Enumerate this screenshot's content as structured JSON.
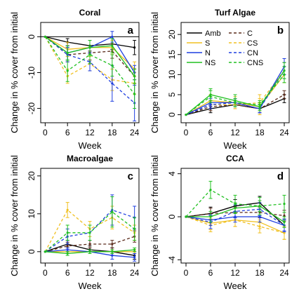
{
  "colors": {
    "Amb": "#000000",
    "S": "#f0c020",
    "N": "#1f3fe0",
    "NS": "#20c020"
  },
  "legend": {
    "entries": [
      {
        "label": "Amb",
        "color": "#000000",
        "dashed": false
      },
      {
        "label": "C",
        "color": "#5a2a1a",
        "dashed": true
      },
      {
        "label": "S",
        "color": "#f0c020",
        "dashed": false
      },
      {
        "label": "CS",
        "color": "#f0c020",
        "dashed": true
      },
      {
        "label": "N",
        "color": "#1f3fe0",
        "dashed": false
      },
      {
        "label": "CN",
        "color": "#1f3fe0",
        "dashed": true
      },
      {
        "label": "NS",
        "color": "#20c020",
        "dashed": false
      },
      {
        "label": "CNS",
        "color": "#20c020",
        "dashed": true
      }
    ]
  },
  "chart_data": [
    {
      "type": "line",
      "title": "Coral",
      "letter": "a",
      "xlabel": "Week",
      "ylabel": "Change in % cover from initial",
      "x": [
        0,
        6,
        12,
        18,
        24
      ],
      "xticks": [
        "0",
        "6",
        "12",
        "18",
        "24"
      ],
      "ylim": [
        -24,
        4
      ],
      "yticks": [
        0,
        -10,
        -20
      ],
      "yticklabels": [
        "0",
        "-10",
        "-20"
      ],
      "hline": 0,
      "series": [
        {
          "name": "Amb",
          "color": "#000000",
          "dashed": false,
          "values": [
            0,
            -1.5,
            -2.5,
            -2,
            -3
          ],
          "err": [
            0,
            1,
            1.5,
            1.5,
            2
          ]
        },
        {
          "name": "C",
          "color": "#5a2a1a",
          "dashed": true,
          "values": [
            0,
            -5,
            -4.5,
            -4,
            -11
          ],
          "err": [
            0,
            2,
            2,
            2,
            2
          ]
        },
        {
          "name": "S",
          "color": "#f0c020",
          "dashed": false,
          "values": [
            0,
            -3.5,
            -3,
            -3,
            -9
          ],
          "err": [
            0,
            2,
            2,
            2,
            2
          ]
        },
        {
          "name": "CS",
          "color": "#f0c020",
          "dashed": true,
          "values": [
            0,
            -11,
            -7.5,
            -12,
            -13
          ],
          "err": [
            0,
            2,
            2,
            3,
            3
          ]
        },
        {
          "name": "N",
          "color": "#1f3fe0",
          "dashed": false,
          "values": [
            0,
            -4.5,
            -3,
            0,
            -10
          ],
          "err": [
            0,
            2,
            2,
            1.5,
            2
          ]
        },
        {
          "name": "CN",
          "color": "#1f3fe0",
          "dashed": true,
          "values": [
            0,
            -5,
            -7,
            -13,
            -18.5
          ],
          "err": [
            0,
            2,
            2.5,
            5,
            5
          ]
        },
        {
          "name": "NS",
          "color": "#20c020",
          "dashed": false,
          "values": [
            0,
            -4.5,
            -3,
            -2.5,
            -11
          ],
          "err": [
            0,
            2,
            2,
            2,
            2
          ]
        },
        {
          "name": "CNS",
          "color": "#20c020",
          "dashed": true,
          "values": [
            0,
            -9.5,
            -5,
            -8,
            -16
          ],
          "err": [
            0,
            3,
            2.5,
            3,
            4
          ]
        }
      ]
    },
    {
      "type": "line",
      "title": "Turf Algae",
      "letter": "b",
      "xlabel": "Week",
      "ylabel": "Change in % cover from initial",
      "x": [
        0,
        6,
        12,
        18,
        24
      ],
      "xticks": [
        "0",
        "6",
        "12",
        "18",
        "24"
      ],
      "ylim": [
        -2,
        23
      ],
      "yticks": [
        0,
        5,
        10,
        15,
        20
      ],
      "yticklabels": [
        "0",
        "5",
        "10",
        "15",
        "20"
      ],
      "hline": null,
      "series": [
        {
          "name": "Amb",
          "color": "#000000",
          "dashed": false,
          "values": [
            0,
            1.5,
            2.5,
            1.5,
            4
          ],
          "err": [
            0,
            1,
            1,
            1,
            1
          ]
        },
        {
          "name": "C",
          "color": "#5a2a1a",
          "dashed": true,
          "values": [
            0,
            2,
            2.5,
            1.5,
            5
          ],
          "err": [
            0,
            1,
            1,
            1,
            1
          ]
        },
        {
          "name": "S",
          "color": "#f0c020",
          "dashed": false,
          "values": [
            0,
            3.5,
            3,
            2,
            10
          ],
          "err": [
            0,
            1.5,
            1.5,
            2,
            2
          ]
        },
        {
          "name": "CS",
          "color": "#f0c020",
          "dashed": true,
          "values": [
            0,
            2.5,
            2.5,
            3,
            11
          ],
          "err": [
            0,
            1,
            1,
            2,
            2
          ]
        },
        {
          "name": "N",
          "color": "#1f3fe0",
          "dashed": false,
          "values": [
            0,
            3,
            3,
            1.5,
            12
          ],
          "err": [
            0,
            1,
            1,
            1,
            2
          ]
        },
        {
          "name": "CN",
          "color": "#1f3fe0",
          "dashed": true,
          "values": [
            0,
            2.5,
            3,
            1.5,
            11
          ],
          "err": [
            0,
            1,
            1,
            1,
            2
          ]
        },
        {
          "name": "NS",
          "color": "#20c020",
          "dashed": false,
          "values": [
            0,
            5,
            3.5,
            2,
            11
          ],
          "err": [
            0,
            1.5,
            1.5,
            1,
            2
          ]
        },
        {
          "name": "CNS",
          "color": "#20c020",
          "dashed": true,
          "values": [
            0,
            4.5,
            3,
            2.5,
            10
          ],
          "err": [
            0,
            1.5,
            1,
            1,
            2
          ]
        }
      ]
    },
    {
      "type": "line",
      "title": "Macroalgae",
      "letter": "c",
      "xlabel": "Week",
      "ylabel": "Change in % cover from initial",
      "x": [
        0,
        6,
        12,
        18,
        24
      ],
      "xticks": [
        "0",
        "6",
        "12",
        "18",
        "24"
      ],
      "ylim": [
        -3,
        22
      ],
      "yticks": [
        0,
        10,
        20
      ],
      "yticklabels": [
        "0",
        "10",
        "20"
      ],
      "hline": null,
      "series": [
        {
          "name": "Amb",
          "color": "#000000",
          "dashed": false,
          "values": [
            0,
            2,
            0.5,
            0,
            -1
          ],
          "err": [
            0,
            1,
            1,
            1,
            1
          ]
        },
        {
          "name": "C",
          "color": "#5a2a1a",
          "dashed": true,
          "values": [
            0,
            1.5,
            2,
            2,
            4
          ],
          "err": [
            0,
            1,
            1,
            1,
            1.5
          ]
        },
        {
          "name": "S",
          "color": "#f0c020",
          "dashed": false,
          "values": [
            0,
            0,
            0,
            0,
            0
          ],
          "err": [
            0,
            0.5,
            0.5,
            0.5,
            0.5
          ]
        },
        {
          "name": "CS",
          "color": "#f0c020",
          "dashed": true,
          "values": [
            0,
            11,
            6,
            9,
            5
          ],
          "err": [
            0,
            2,
            2,
            3,
            2
          ]
        },
        {
          "name": "N",
          "color": "#1f3fe0",
          "dashed": false,
          "values": [
            0,
            0.5,
            0,
            -1,
            -1.5
          ],
          "err": [
            0,
            0.5,
            0.5,
            1,
            1
          ]
        },
        {
          "name": "CN",
          "color": "#1f3fe0",
          "dashed": true,
          "values": [
            0,
            4,
            5,
            11,
            9
          ],
          "err": [
            0,
            2,
            2,
            4,
            3
          ]
        },
        {
          "name": "NS",
          "color": "#20c020",
          "dashed": false,
          "values": [
            0,
            -0.5,
            0,
            0,
            0.5
          ],
          "err": [
            0,
            0.5,
            0.5,
            0.5,
            0.5
          ]
        },
        {
          "name": "CNS",
          "color": "#20c020",
          "dashed": true,
          "values": [
            0,
            5,
            5,
            10.5,
            6
          ],
          "err": [
            0,
            2,
            2,
            4,
            3
          ]
        }
      ]
    },
    {
      "type": "line",
      "title": "CCA",
      "letter": "d",
      "xlabel": "Week",
      "ylabel": "Change in % cover from initial",
      "x": [
        0,
        6,
        12,
        18,
        24
      ],
      "xticks": [
        "0",
        "6",
        "12",
        "18",
        "24"
      ],
      "ylim": [
        -4.3,
        4.5
      ],
      "yticks": [
        -4,
        0,
        4
      ],
      "yticklabels": [
        "-4",
        "0",
        "4"
      ],
      "hline": null,
      "series": [
        {
          "name": "Amb",
          "color": "#000000",
          "dashed": false,
          "values": [
            0,
            0.3,
            1,
            1.3,
            -0.8
          ],
          "err": [
            0,
            0.6,
            0.6,
            0.6,
            0.6
          ]
        },
        {
          "name": "C",
          "color": "#5a2a1a",
          "dashed": true,
          "values": [
            0,
            0.3,
            0.4,
            0.4,
            0.1
          ],
          "err": [
            0,
            0.5,
            0.5,
            0.5,
            0.5
          ]
        },
        {
          "name": "S",
          "color": "#f0c020",
          "dashed": false,
          "values": [
            0,
            -0.6,
            -0.3,
            -0.5,
            -1.5
          ],
          "err": [
            0,
            0.6,
            0.6,
            0.6,
            0.6
          ]
        },
        {
          "name": "CS",
          "color": "#f0c020",
          "dashed": true,
          "values": [
            0,
            -0.8,
            -0.3,
            -0.9,
            -1.5
          ],
          "err": [
            0,
            0.6,
            0.6,
            0.6,
            0.6
          ]
        },
        {
          "name": "N",
          "color": "#1f3fe0",
          "dashed": false,
          "values": [
            0,
            -0.3,
            0,
            0,
            -0.8
          ],
          "err": [
            0,
            0.5,
            0.5,
            0.5,
            0.5
          ]
        },
        {
          "name": "CN",
          "color": "#1f3fe0",
          "dashed": true,
          "values": [
            0,
            -0.5,
            0.5,
            0.7,
            -0.8
          ],
          "err": [
            0,
            0.6,
            0.6,
            0.6,
            0.6
          ]
        },
        {
          "name": "NS",
          "color": "#20c020",
          "dashed": false,
          "values": [
            0,
            0,
            0.8,
            1,
            -0.5
          ],
          "err": [
            0,
            0.5,
            0.5,
            0.5,
            0.5
          ]
        },
        {
          "name": "CNS",
          "color": "#20c020",
          "dashed": true,
          "values": [
            0,
            2.5,
            1.2,
            1,
            1.2
          ],
          "err": [
            0,
            0.8,
            0.8,
            0.8,
            0.8
          ]
        }
      ]
    }
  ]
}
